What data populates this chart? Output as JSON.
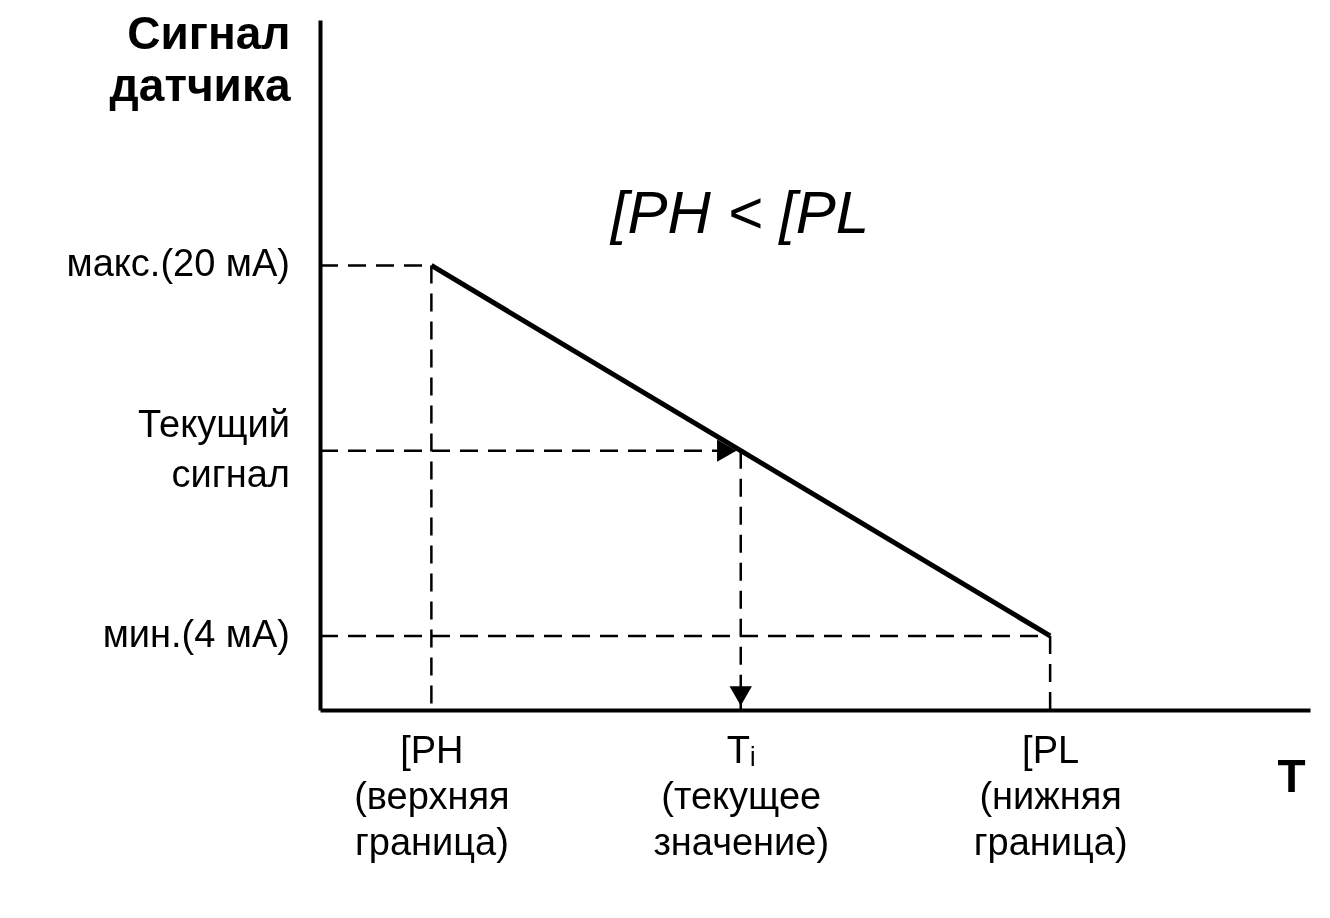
{
  "chart_data": {
    "type": "line",
    "xlabel": "T",
    "ylabel": "Сигнал\nдатчика",
    "annotations": [
      "[PH < [PL"
    ],
    "categories": [
      "[PH\n(верхняя\nграница)",
      "Tᵢ\n(текущее\nзначение)",
      "[PL\n(нижняя\nграница)"
    ],
    "series": [
      {
        "color": "#000000",
        "values": [
          20,
          12,
          4
        ]
      }
    ],
    "ylim": [
      0.8,
      30.6
    ],
    "yticks": [
      {
        "value": 20,
        "label": "макс.(20 мА)"
      },
      {
        "value": 12,
        "label": "Текущий\nсигнал"
      },
      {
        "value": 4,
        "label": "мин.(4 мА)"
      }
    ],
    "ref_lines": [
      {
        "axis": "y",
        "value": 20,
        "line_style": "dashed"
      },
      {
        "axis": "y",
        "value": 12,
        "line_style": "dashed"
      },
      {
        "axis": "y",
        "value": 4,
        "line_style": "dashed"
      },
      {
        "axis": "x",
        "value": "[PH\n(верхняя\nграница)",
        "line_style": "dashed"
      },
      {
        "axis": "x",
        "value": "Tᵢ\n(текущее\nзначение)",
        "line_style": "dashed"
      },
      {
        "axis": "x",
        "value": "[PL\n(нижняя\nграница)",
        "line_style": "dashed"
      }
    ],
    "grid": false,
    "marker": "none",
    "line_style": "solid"
  }
}
